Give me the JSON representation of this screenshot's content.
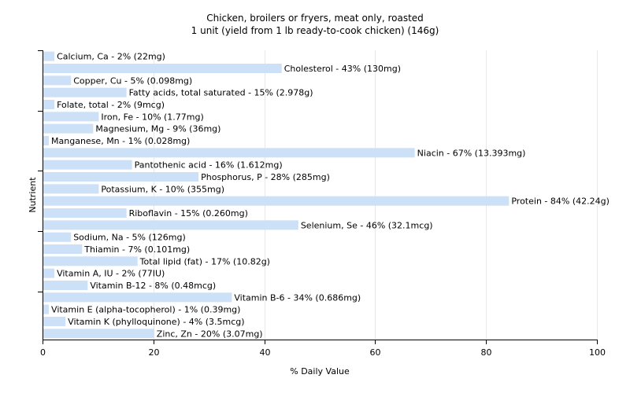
{
  "chart_data": {
    "type": "bar",
    "orientation": "horizontal",
    "title": "Chicken, broilers or fryers, meat only, roasted",
    "subtitle": "1 unit (yield from 1 lb ready-to-cook chicken) (146g)",
    "xlabel": "% Daily Value",
    "ylabel": "Nutrient",
    "xlim": [
      0,
      100
    ],
    "xticks": [
      0,
      20,
      40,
      60,
      80,
      100
    ],
    "grid": true,
    "bar_color": "#cce0f8",
    "categories": [
      "Calcium, Ca",
      "Cholesterol",
      "Copper, Cu",
      "Fatty acids, total saturated",
      "Folate, total",
      "Iron, Fe",
      "Magnesium, Mg",
      "Manganese, Mn",
      "Niacin",
      "Pantothenic acid",
      "Phosphorus, P",
      "Potassium, K",
      "Protein",
      "Riboflavin",
      "Selenium, Se",
      "Sodium, Na",
      "Thiamin",
      "Total lipid (fat)",
      "Vitamin A, IU",
      "Vitamin B-12",
      "Vitamin B-6",
      "Vitamin E (alpha-tocopherol)",
      "Vitamin K (phylloquinone)",
      "Zinc, Zn"
    ],
    "values": [
      2,
      43,
      5,
      15,
      2,
      10,
      9,
      1,
      67,
      16,
      28,
      10,
      84,
      15,
      46,
      5,
      7,
      17,
      2,
      8,
      34,
      1,
      4,
      20
    ],
    "labels": [
      "Calcium, Ca - 2% (22mg)",
      "Cholesterol - 43% (130mg)",
      "Copper, Cu - 5% (0.098mg)",
      "Fatty acids, total saturated - 15% (2.978g)",
      "Folate, total - 2% (9mcg)",
      "Iron, Fe - 10% (1.77mg)",
      "Magnesium, Mg - 9% (36mg)",
      "Manganese, Mn - 1% (0.028mg)",
      "Niacin - 67% (13.393mg)",
      "Pantothenic acid - 16% (1.612mg)",
      "Phosphorus, P - 28% (285mg)",
      "Potassium, K - 10% (355mg)",
      "Protein - 84% (42.24g)",
      "Riboflavin - 15% (0.260mg)",
      "Selenium, Se - 46% (32.1mcg)",
      "Sodium, Na - 5% (126mg)",
      "Thiamin - 7% (0.101mg)",
      "Total lipid (fat) - 17% (10.82g)",
      "Vitamin A, IU - 2% (77IU)",
      "Vitamin B-12 - 8% (0.48mcg)",
      "Vitamin B-6 - 34% (0.686mg)",
      "Vitamin E (alpha-tocopherol) - 1% (0.39mg)",
      "Vitamin K (phylloquinone) - 4% (3.5mcg)",
      "Zinc, Zn - 20% (3.07mg)"
    ]
  }
}
